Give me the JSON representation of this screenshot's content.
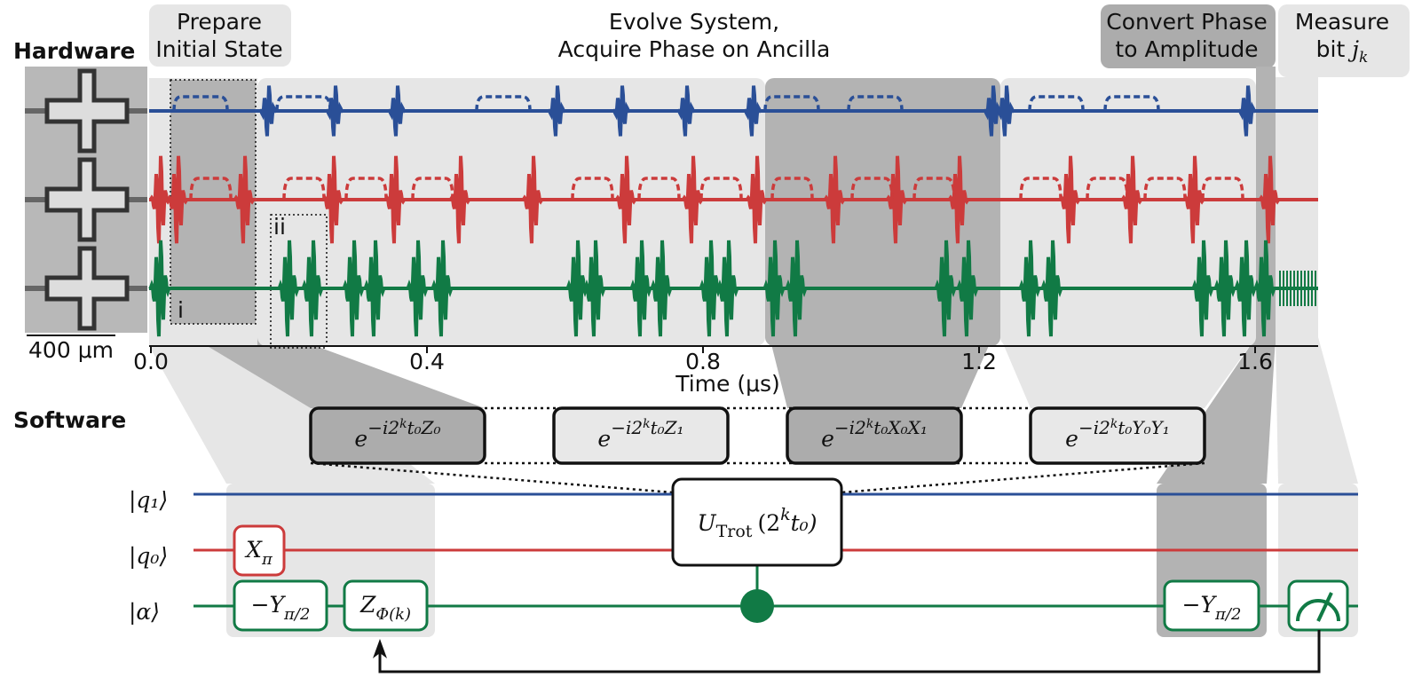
{
  "hardware": {
    "title": "Hardware",
    "scale_bar": "400 μm"
  },
  "software": {
    "title": "Software"
  },
  "stages": [
    {
      "lines": [
        "Prepare",
        "Initial State"
      ]
    },
    {
      "lines": [
        "Evolve System,",
        "Acquire Phase on Ancilla"
      ]
    },
    {
      "lines": [
        "Convert Phase",
        "to Amplitude"
      ]
    },
    {
      "lines": [
        "Measure",
        "bit "
      ],
      "symbol": "j",
      "subscript": "k"
    }
  ],
  "time_axis": {
    "label": "Time (μs)",
    "ticks": [
      "0.0",
      "0.4",
      "0.8",
      "1.2",
      "1.6"
    ]
  },
  "insets": [
    "i",
    "ii"
  ],
  "trotter_terms": [
    {
      "base": "e",
      "exponent": "−i2",
      "power": "k",
      "rest": "t₀Z₀"
    },
    {
      "base": "e",
      "exponent": "−i2",
      "power": "k",
      "rest": "t₀Z₁"
    },
    {
      "base": "e",
      "exponent": "−i2",
      "power": "k",
      "rest": "t₀X₀X₁"
    },
    {
      "base": "e",
      "exponent": "−i2",
      "power": "k",
      "rest": "t₀Y₀Y₁"
    }
  ],
  "circuit": {
    "qubits": [
      "|q₁⟩",
      "|q₀⟩",
      "|α⟩"
    ],
    "unitary": {
      "symbol": "U",
      "subscript": "Trot",
      "argument": "(2",
      "power": "k",
      "rest": "t₀)"
    },
    "gates": [
      {
        "symbol": "X",
        "subscript": "π"
      },
      {
        "symbol": "−Y",
        "subscript": "π/2"
      },
      {
        "symbol": "Z",
        "subscript": "Φ(k)"
      },
      {
        "symbol": "−Y",
        "subscript": "π/2"
      }
    ]
  }
}
